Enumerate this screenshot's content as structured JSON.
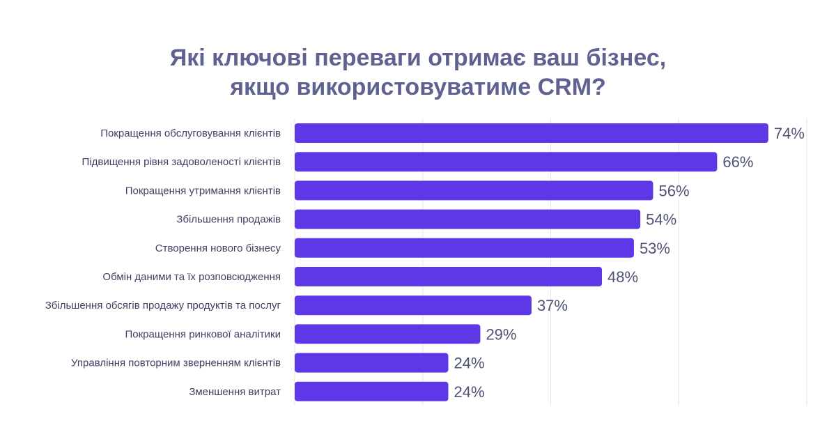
{
  "title": {
    "line1": "Які ключові переваги отримає ваш бізнес,",
    "line2": "якщо використовуватиме CRM?"
  },
  "colors": {
    "bar": "#5e38e6",
    "title": "#5f6291",
    "grid": "#e6e6ec"
  },
  "chart_data": {
    "type": "bar",
    "orientation": "horizontal",
    "title": "Які ключові переваги отримає ваш бізнес, якщо використовуватиме CRM?",
    "categories": [
      "Покращення обслуговування клієнтів",
      "Підвищення рівня задоволеності клієнтів",
      "Покращення утримання клієнтів",
      "Збільшення продажів",
      "Створення нового бізнесу",
      "Обмін даними та їх розповсюдження",
      "Збільшення обсягів продажу продуктів та послуг",
      "Покращення ринкової аналітики",
      "Управління повторним зверненням клієнтів",
      "Зменшення витрат"
    ],
    "values": [
      74,
      66,
      56,
      54,
      53,
      48,
      37,
      29,
      24,
      24
    ],
    "value_labels": [
      "74%",
      "66%",
      "56%",
      "54%",
      "53%",
      "48%",
      "37%",
      "29%",
      "24%",
      "24%"
    ],
    "xlim": [
      0,
      80
    ],
    "grid": true,
    "xlabel": "",
    "ylabel": ""
  }
}
